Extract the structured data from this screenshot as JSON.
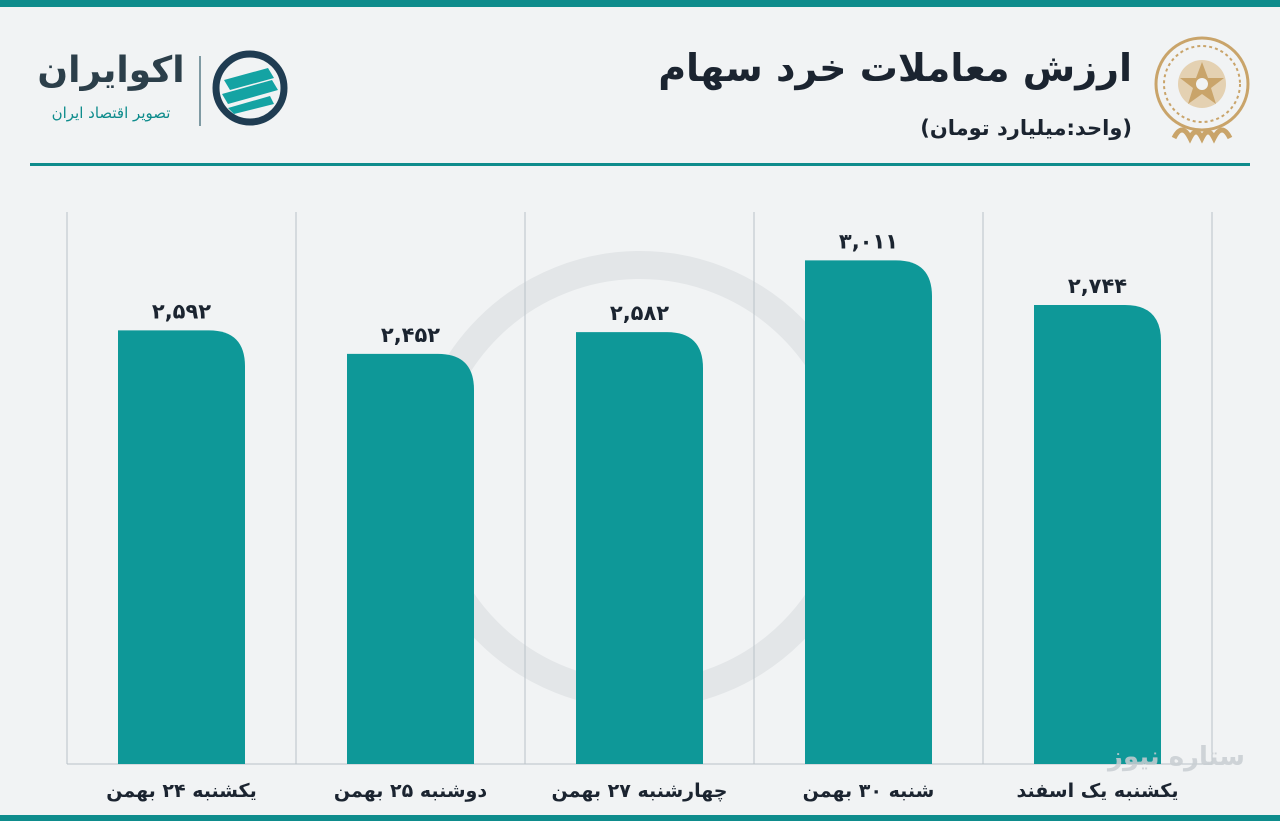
{
  "header": {
    "title": "ارزش معاملات خرد سهام",
    "subtitle": "(واحد:میلیارد تومان)"
  },
  "brand": {
    "name": "اکوایران",
    "tagline": "تصویر اقتصاد ایران"
  },
  "watermark": {
    "text": "ستاره نیوز"
  },
  "colors": {
    "accent": "#0e9898",
    "strip": "#0e8c8c",
    "background": "#f1f3f4",
    "text": "#1b2430"
  },
  "chart_data": {
    "type": "bar",
    "title": "ارزش معاملات خرد سهام",
    "subtitle": "(واحد:میلیارد تومان)",
    "categories": [
      "یکشنبه ۲۴ بهمن",
      "دوشنبه ۲۵ بهمن",
      "چهارشنبه ۲۷ بهمن",
      "شنبه ۳۰ بهمن",
      "یکشنبه یک اسفند"
    ],
    "values": [
      2592,
      2452,
      2582,
      3011,
      2744
    ],
    "data_labels": [
      "۲,۵۹۲",
      "۲,۴۵۲",
      "۲,۵۸۲",
      "۳,۰۱۱",
      "۲,۷۴۴"
    ],
    "ylim": [
      0,
      3300
    ],
    "grid": "vertical separators",
    "legend": "none"
  }
}
